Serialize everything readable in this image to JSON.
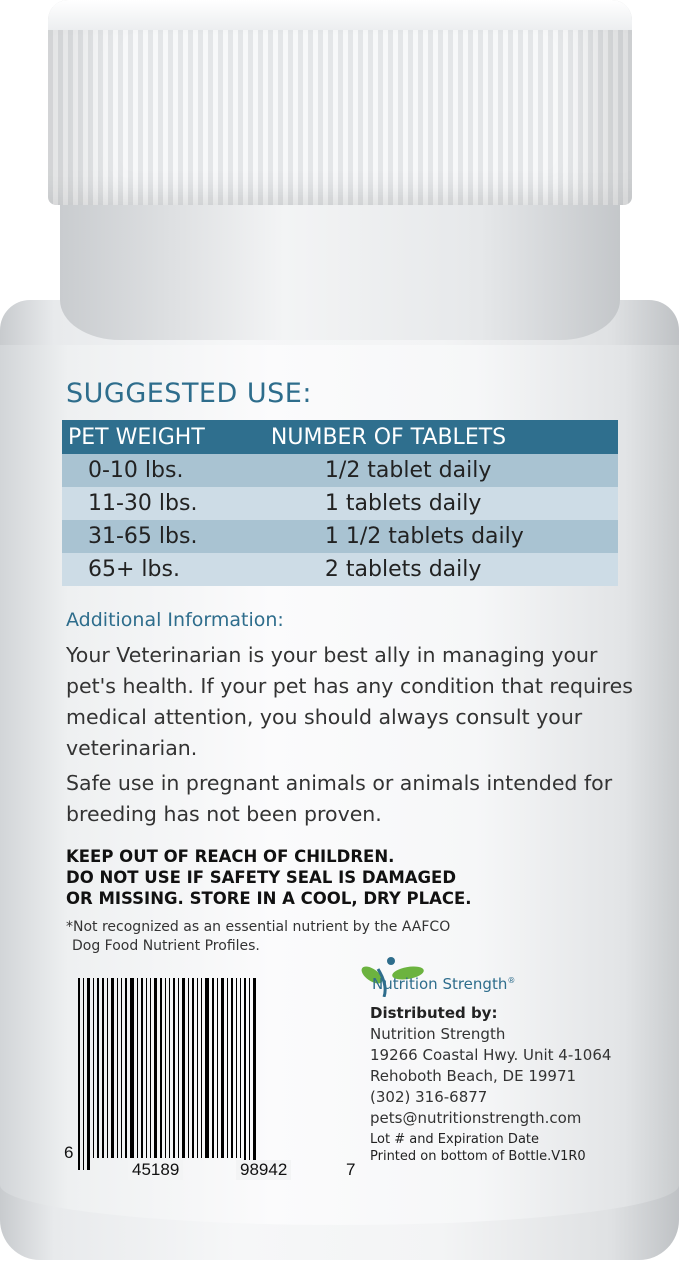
{
  "suggested_use": {
    "title": "SUGGESTED USE:",
    "headers": [
      "PET WEIGHT",
      "NUMBER OF TABLETS"
    ],
    "rows": [
      [
        "0-10 lbs.",
        "1/2 tablet daily"
      ],
      [
        "11-30 lbs.",
        "1 tablets daily"
      ],
      [
        "31-65 lbs.",
        "1 1/2 tablets daily"
      ],
      [
        "65+ lbs.",
        "2 tablets daily"
      ]
    ],
    "header_color": "#2f6f8e"
  },
  "additional": {
    "title": "Additional Information:",
    "paragraph1": "Your Veterinarian is your best ally in managing your pet's health. If your pet has any condition that requires medical attention,  you should always consult your veterinarian.",
    "paragraph2": "Safe use in pregnant animals or animals intended for breeding has not been proven."
  },
  "warning": {
    "line1": "KEEP OUT OF REACH OF CHILDREN.",
    "line2": "DO NOT USE IF SAFETY SEAL IS DAMAGED",
    "line3": "OR MISSING. STORE IN A COOL, DRY PLACE."
  },
  "footnote": {
    "line1": "*Not recognized as an essential nutrient by the AAFCO",
    "line2": "Dog Food Nutrient Profiles."
  },
  "barcode": {
    "first": "6",
    "left": "45189",
    "right": "98942",
    "last": "7"
  },
  "brand": {
    "name": "Nutrition Strength",
    "mark": "®",
    "color": "#2e6d8c",
    "leaf_color": "#6cb33f"
  },
  "distributor": {
    "label": "Distributed by:",
    "lines": [
      "Nutrition Strength",
      "19266 Coastal Hwy. Unit 4-1064",
      "Rehoboth Beach, DE 19971",
      "(302) 316-6877",
      "pets@nutritionstrength.com"
    ]
  },
  "lot": {
    "line1": "Lot # and Expiration Date",
    "line2": "Printed on bottom of Bottle.V1R0"
  }
}
